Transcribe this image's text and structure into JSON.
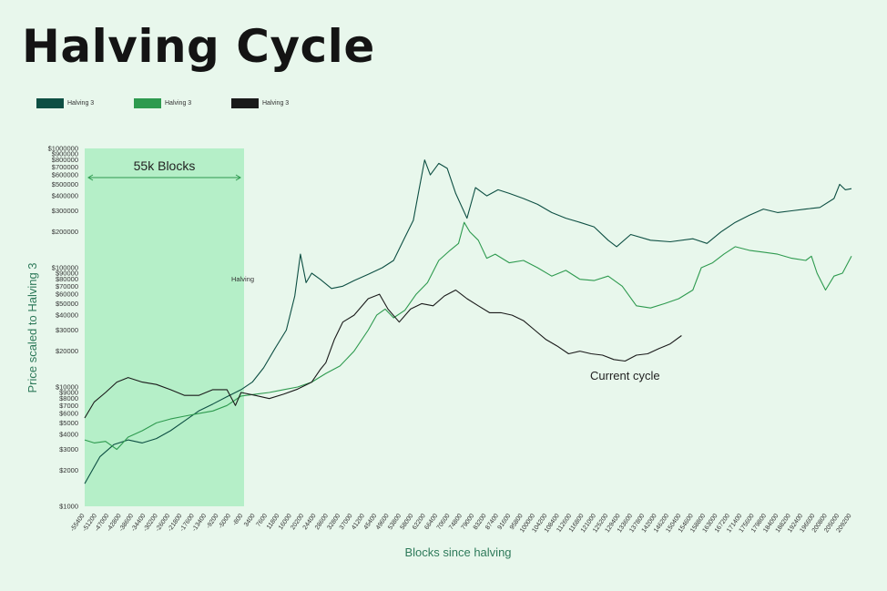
{
  "title": "Halving Cycle",
  "legend": [
    {
      "label": "Halving 3",
      "color": "#0d4f43"
    },
    {
      "label": "Halving 3",
      "color": "#2e9a4f"
    },
    {
      "label": "Halving 3",
      "color": "#1a1a1a"
    }
  ],
  "chart_data": {
    "type": "line",
    "ylabel": "Price scaled to Halving 3",
    "xlabel": "Blocks since halving",
    "yscale": "log",
    "ylim": [
      1000,
      1000000
    ],
    "xlim": [
      -55400,
      216200
    ],
    "y_ticks": [
      "$1000",
      "$2000",
      "$3000",
      "$4000",
      "$5000",
      "$6000",
      "$7000",
      "$8000",
      "$9000",
      "$10000",
      "$20000",
      "$30000",
      "$40000",
      "$50000",
      "$60000",
      "$70000",
      "$80000",
      "$90000",
      "$100000",
      "$200000",
      "$300000",
      "$400000",
      "$500000",
      "$600000",
      "$700000",
      "$800000",
      "$900000",
      "$1000000"
    ],
    "x_ticks": [
      "-55400",
      "-51200",
      "-47000",
      "-42800",
      "-38600",
      "-34400",
      "-30200",
      "-26000",
      "-21800",
      "-17600",
      "-13400",
      "-9200",
      "-5000",
      "-800",
      "3400",
      "7600",
      "11800",
      "16000",
      "20200",
      "24400",
      "28600",
      "32800",
      "37000",
      "41200",
      "45400",
      "49600",
      "53800",
      "58000",
      "62200",
      "66400",
      "70600",
      "74800",
      "79000",
      "83200",
      "87400",
      "91600",
      "95800",
      "100000",
      "104200",
      "108400",
      "112600",
      "116800",
      "121000",
      "125200",
      "129400",
      "133600",
      "137800",
      "142000",
      "146200",
      "150400",
      "154600",
      "158800",
      "163000",
      "167200",
      "171400",
      "175600",
      "179800",
      "184000",
      "188200",
      "192400",
      "196600",
      "200800",
      "205000",
      "209200"
    ],
    "annotations": {
      "shaded_region": {
        "label": "55k Blocks",
        "x_start": -55400,
        "x_end": 0
      },
      "halving_label": "Halving",
      "current_cycle_label": "Current cycle"
    },
    "series": [
      {
        "color": "#0d4f43",
        "x": [
          -55400,
          -50000,
          -45000,
          -40000,
          -35000,
          -30000,
          -25000,
          -20000,
          -15000,
          -10000,
          -5000,
          0,
          4000,
          8000,
          12000,
          16000,
          19000,
          21000,
          23000,
          25000,
          28000,
          32000,
          36000,
          40000,
          45000,
          50000,
          54000,
          58000,
          61000,
          63000,
          65000,
          67000,
          70000,
          73000,
          76000,
          80000,
          83000,
          87000,
          91000,
          95000,
          100000,
          105000,
          110000,
          115000,
          120000,
          125000,
          130000,
          133000,
          138000,
          145000,
          152000,
          160000,
          165000,
          170000,
          175000,
          180000,
          185000,
          190000,
          195000,
          200000,
          205000,
          210000,
          212000,
          214000,
          216200
        ],
        "y": [
          1550,
          2600,
          3300,
          3600,
          3400,
          3700,
          4300,
          5200,
          6300,
          7200,
          8300,
          9500,
          11000,
          14500,
          21000,
          30000,
          58000,
          130000,
          75000,
          90000,
          80000,
          67000,
          70000,
          78000,
          88000,
          100000,
          115000,
          180000,
          250000,
          450000,
          800000,
          600000,
          750000,
          680000,
          420000,
          260000,
          470000,
          400000,
          450000,
          420000,
          380000,
          340000,
          290000,
          260000,
          240000,
          220000,
          170000,
          150000,
          190000,
          170000,
          165000,
          175000,
          160000,
          200000,
          240000,
          275000,
          310000,
          290000,
          300000,
          310000,
          320000,
          380000,
          500000,
          450000,
          460000
        ]
      },
      {
        "color": "#2e9a4f",
        "x": [
          -55400,
          -52000,
          -48000,
          -44000,
          -40000,
          -35000,
          -30000,
          -25000,
          -20000,
          -15000,
          -10000,
          -5000,
          0,
          5000,
          10000,
          15000,
          20000,
          25000,
          30000,
          35000,
          40000,
          45000,
          48000,
          51000,
          54000,
          58000,
          62000,
          66000,
          70000,
          74000,
          77000,
          79000,
          81000,
          84000,
          87000,
          90000,
          95000,
          100000,
          105000,
          110000,
          115000,
          120000,
          125000,
          130000,
          135000,
          140000,
          145000,
          150000,
          155000,
          160000,
          163000,
          167000,
          171000,
          175000,
          180000,
          185000,
          190000,
          195000,
          200000,
          202000,
          204000,
          207000,
          210000,
          213000,
          216200
        ],
        "y": [
          3600,
          3400,
          3500,
          3000,
          3800,
          4300,
          5000,
          5400,
          5700,
          6000,
          6300,
          7000,
          8400,
          8700,
          9000,
          9500,
          10000,
          11000,
          13000,
          15000,
          20000,
          30000,
          40000,
          45000,
          38000,
          44000,
          60000,
          75000,
          115000,
          140000,
          160000,
          240000,
          200000,
          170000,
          120000,
          130000,
          110000,
          115000,
          100000,
          85000,
          95000,
          80000,
          78000,
          85000,
          70000,
          48000,
          46000,
          50000,
          55000,
          65000,
          100000,
          110000,
          130000,
          150000,
          140000,
          135000,
          130000,
          120000,
          115000,
          125000,
          90000,
          65000,
          85000,
          90000,
          125000
        ]
      },
      {
        "color": "#1a1a1a",
        "x": [
          -55400,
          -52000,
          -48000,
          -44000,
          -40000,
          -35000,
          -30000,
          -25000,
          -20000,
          -15000,
          -10000,
          -5000,
          -2000,
          0,
          5000,
          10000,
          15000,
          20000,
          25000,
          28000,
          30000,
          33000,
          36000,
          40000,
          45000,
          49000,
          52000,
          56000,
          60000,
          64000,
          68000,
          72000,
          76000,
          80000,
          84000,
          88000,
          92000,
          96000,
          100000,
          104000,
          108000,
          112000,
          116000,
          120000,
          124000,
          128000,
          132000,
          136000,
          140000,
          144000,
          148000,
          152000,
          156000
        ],
        "y": [
          5500,
          7500,
          9000,
          11000,
          12000,
          11000,
          10500,
          9500,
          8500,
          8500,
          9500,
          9500,
          7000,
          9000,
          8500,
          8000,
          8700,
          9600,
          11000,
          14000,
          16000,
          25000,
          35000,
          40000,
          55000,
          60000,
          45000,
          35000,
          45000,
          50000,
          48000,
          58000,
          65000,
          55000,
          48000,
          42000,
          42000,
          40000,
          36000,
          30000,
          25000,
          22000,
          19000,
          20000,
          19000,
          18500,
          17000,
          16500,
          18500,
          19000,
          21000,
          23000,
          27000
        ]
      }
    ]
  }
}
